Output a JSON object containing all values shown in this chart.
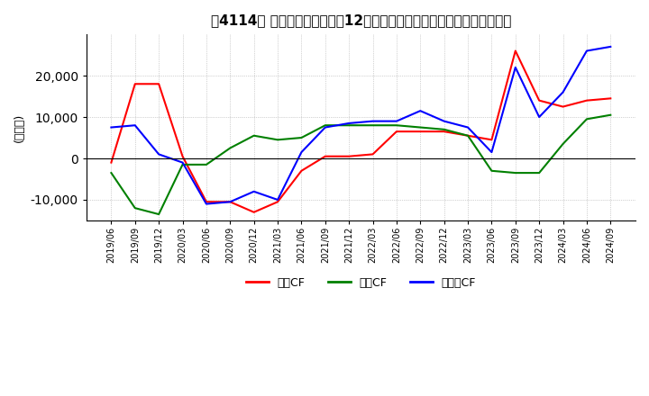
{
  "title": "　4114、 キャッシュフローの12か月移動合計の対前年同期増減額の推移",
  "title_raw": "【4114】 キャッシュフローの12か月移動合計の対前年同期増減額の推移",
  "ylabel": "(百万円)",
  "ylim": [
    -15000,
    30000
  ],
  "yticks": [
    -10000,
    0,
    10000,
    20000
  ],
  "legend_labels": [
    "営業CF",
    "投資CF",
    "フリーCF"
  ],
  "line_colors": [
    "#ff0000",
    "#008000",
    "#0000ff"
  ],
  "dates": [
    "2019/06",
    "2019/09",
    "2019/12",
    "2020/03",
    "2020/06",
    "2020/09",
    "2020/12",
    "2021/03",
    "2021/06",
    "2021/09",
    "2021/12",
    "2022/03",
    "2022/06",
    "2022/09",
    "2022/12",
    "2023/03",
    "2023/06",
    "2023/09",
    "2023/12",
    "2024/03",
    "2024/06",
    "2024/09"
  ],
  "operating_cf": [
    -1000,
    18000,
    18000,
    500,
    -10500,
    -10500,
    -13000,
    -10500,
    -3000,
    500,
    500,
    1000,
    6500,
    6500,
    6500,
    5500,
    4500,
    26000,
    14000,
    12500,
    14000,
    14500
  ],
  "investing_cf": [
    -3500,
    -12000,
    -13500,
    -1500,
    -1500,
    2500,
    5500,
    4500,
    5000,
    8000,
    8000,
    8000,
    8000,
    7500,
    7000,
    5500,
    -3000,
    -3500,
    -3500,
    3500,
    9500,
    10500
  ],
  "free_cf": [
    7500,
    8000,
    1000,
    -1000,
    -11000,
    -10500,
    -8000,
    -10000,
    1500,
    7500,
    8500,
    9000,
    9000,
    11500,
    9000,
    7500,
    1500,
    22000,
    10000,
    16000,
    26000,
    27000
  ]
}
